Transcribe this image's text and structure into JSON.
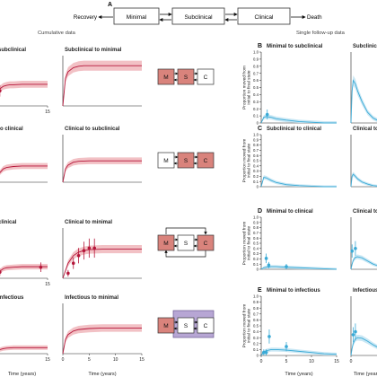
{
  "figure": {
    "panel_letter_A": "A",
    "state_boxes": [
      "Minimal",
      "Subclinical",
      "Clinical"
    ],
    "recovery_label": "Recovery",
    "death_label": "Death",
    "cumulative_header": "Cumulative data",
    "single_header": "Single follow-up data",
    "x_axis_label": "Time (years)",
    "y_axis_label": "Proportion moved from initial to final state",
    "state_initials": [
      "M",
      "S",
      "C"
    ],
    "colors": {
      "red_curve": "#b5163a",
      "red_band": "#f0b6bb",
      "blue_curve": "#3aaad6",
      "blue_band": "#bfe3f2",
      "highlight_box": "#d9837c",
      "purple_box": "#b7a6d4"
    }
  },
  "chart_data": [
    {
      "type": "line",
      "title": "subclinical",
      "x": [
        0,
        1,
        2,
        3,
        4,
        5,
        7.5,
        10,
        12.5,
        15
      ],
      "series": [
        {
          "values": [
            0.0,
            0.34,
            0.39,
            0.41,
            0.42,
            0.42,
            0.43,
            0.43,
            0.43,
            0.43
          ]
        }
      ],
      "points": [
        {
          "x": 1,
          "y": 0.3
        }
      ],
      "xlim": [
        0,
        15
      ],
      "ylim": [
        0,
        1
      ],
      "xticks": [
        "15"
      ]
    },
    {
      "type": "line",
      "title": "Subclinical to minimal",
      "x": [
        0,
        0.5,
        1,
        2,
        3,
        4,
        5,
        7.5,
        10,
        12.5,
        15
      ],
      "series": [
        {
          "values": [
            0.0,
            0.55,
            0.68,
            0.76,
            0.79,
            0.8,
            0.8,
            0.8,
            0.8,
            0.8,
            0.8
          ]
        }
      ],
      "xlim": [
        0,
        15
      ],
      "ylim": [
        0,
        1
      ]
    },
    {
      "type": "line",
      "title": "to clinical",
      "x": [
        0,
        1,
        2,
        3,
        5,
        7.5,
        10,
        12.5,
        15
      ],
      "series": [
        {
          "values": [
            0.0,
            0.2,
            0.28,
            0.31,
            0.33,
            0.34,
            0.34,
            0.34,
            0.34
          ]
        }
      ],
      "xlim": [
        0,
        15
      ],
      "ylim": [
        0,
        1
      ]
    },
    {
      "type": "line",
      "title": "Clinical to subclinical",
      "x": [
        0,
        0.5,
        1,
        2,
        3,
        5,
        7.5,
        10,
        12.5,
        15
      ],
      "series": [
        {
          "values": [
            0.0,
            0.28,
            0.36,
            0.42,
            0.44,
            0.45,
            0.45,
            0.45,
            0.45,
            0.45
          ]
        }
      ],
      "xlim": [
        0,
        15
      ],
      "ylim": [
        0,
        1
      ]
    },
    {
      "type": "line",
      "title": "clinical",
      "x": [
        0,
        1,
        2,
        3,
        5,
        7.5,
        10,
        12.5,
        15
      ],
      "series": [
        {
          "values": [
            0.0,
            0.14,
            0.19,
            0.21,
            0.22,
            0.23,
            0.23,
            0.23,
            0.23
          ]
        }
      ],
      "points": [
        {
          "x": 0.5,
          "y": 0.05
        },
        {
          "x": 1,
          "y": 0.12
        },
        {
          "x": 13,
          "y": 0.22
        }
      ],
      "xlim": [
        0,
        15
      ],
      "ylim": [
        0,
        1
      ],
      "xticks": [
        "15"
      ]
    },
    {
      "type": "line",
      "title": "Clinical to minimal",
      "x": [
        0,
        1,
        2,
        3,
        4,
        5,
        7.5,
        10,
        12.5,
        15
      ],
      "series": [
        {
          "values": [
            0.0,
            0.3,
            0.45,
            0.52,
            0.55,
            0.57,
            0.58,
            0.58,
            0.58,
            0.58
          ]
        }
      ],
      "points": [
        {
          "x": 1,
          "y": 0.1
        },
        {
          "x": 2,
          "y": 0.3
        },
        {
          "x": 3,
          "y": 0.45
        },
        {
          "x": 4,
          "y": 0.55
        },
        {
          "x": 5,
          "y": 0.6
        },
        {
          "x": 6,
          "y": 0.6
        }
      ],
      "xlim": [
        0,
        15
      ],
      "ylim": [
        0,
        1
      ]
    },
    {
      "type": "line",
      "title": "infectious",
      "x": [
        0,
        1,
        2,
        3,
        5,
        7.5,
        10,
        12.5,
        15
      ],
      "series": [
        {
          "values": [
            0.0,
            0.08,
            0.1,
            0.11,
            0.12,
            0.12,
            0.12,
            0.12,
            0.12
          ]
        }
      ],
      "xlim": [
        0,
        15
      ],
      "ylim": [
        0,
        1
      ],
      "xticks": [
        "15"
      ]
    },
    {
      "type": "line",
      "title": "Infectious to minimal",
      "x": [
        0,
        0.5,
        1,
        2,
        3,
        5,
        7.5,
        10,
        12.5,
        15
      ],
      "series": [
        {
          "values": [
            0.0,
            0.28,
            0.38,
            0.45,
            0.48,
            0.5,
            0.51,
            0.51,
            0.51,
            0.51
          ]
        }
      ],
      "xlim": [
        0,
        15
      ],
      "ylim": [
        0,
        1
      ],
      "xticks": [
        "0",
        "5",
        "10",
        "15"
      ]
    },
    {
      "type": "line",
      "letter": "B",
      "title": "Minimal to subclinical",
      "x": [
        0,
        0.5,
        1,
        2,
        3,
        5,
        7.5,
        10,
        12.5,
        15
      ],
      "series": [
        {
          "values": [
            0.0,
            0.08,
            0.09,
            0.08,
            0.06,
            0.04,
            0.02,
            0.01,
            0.0,
            0.0
          ]
        }
      ],
      "points": [
        {
          "x": 1.2,
          "y": 0.12
        }
      ],
      "xlim": [
        0,
        15
      ],
      "ylim": [
        0,
        1
      ],
      "yticks": [
        "0",
        "0.1",
        "0.2",
        "0.3",
        "0.4",
        "0.5",
        "0.6",
        "0.7",
        "0.8",
        "0.9",
        "1.0"
      ]
    },
    {
      "type": "line",
      "title": "Subclinical to minimal",
      "title_visible": "Subclinica",
      "x": [
        0,
        0.5,
        1,
        2,
        3,
        5,
        7.5,
        10,
        12.5,
        15
      ],
      "series": [
        {
          "values": [
            0.0,
            0.45,
            0.6,
            0.55,
            0.45,
            0.3,
            0.15,
            0.07,
            0.03,
            0.02
          ]
        }
      ],
      "xlim": [
        0,
        15
      ],
      "ylim": [
        0,
        1
      ]
    },
    {
      "type": "line",
      "letter": "C",
      "title": "Subclinical to clinical",
      "x": [
        0,
        0.5,
        1,
        2,
        3,
        5,
        7.5,
        10,
        12.5,
        15
      ],
      "series": [
        {
          "values": [
            0.0,
            0.18,
            0.17,
            0.12,
            0.08,
            0.04,
            0.02,
            0.01,
            0.0,
            0.0
          ]
        }
      ],
      "xlim": [
        0,
        15
      ],
      "ylim": [
        0,
        1
      ],
      "yticks": [
        "0",
        "0.1",
        "0.2",
        "0.3",
        "0.4",
        "0.5",
        "0.6",
        "0.7",
        "0.8",
        "0.9",
        "1.0"
      ]
    },
    {
      "type": "line",
      "title": "Clinical to subclinical",
      "title_visible": "Clinical to",
      "x": [
        0,
        0.5,
        1,
        2,
        3,
        5,
        7.5,
        10,
        12.5,
        15
      ],
      "series": [
        {
          "values": [
            0.0,
            0.2,
            0.24,
            0.2,
            0.15,
            0.09,
            0.05,
            0.02,
            0.01,
            0.0
          ]
        }
      ],
      "xlim": [
        0,
        15
      ],
      "ylim": [
        0,
        1
      ]
    },
    {
      "type": "line",
      "letter": "D",
      "title": "Minimal to clinical",
      "x": [
        0,
        0.5,
        1,
        2,
        3,
        5,
        7.5,
        10,
        12.5,
        15
      ],
      "series": [
        {
          "values": [
            0.0,
            0.03,
            0.04,
            0.05,
            0.05,
            0.04,
            0.03,
            0.02,
            0.01,
            0.0
          ]
        }
      ],
      "points": [
        {
          "x": 1,
          "y": 0.21
        },
        {
          "x": 1.5,
          "y": 0.08
        },
        {
          "x": 5,
          "y": 0.05
        }
      ],
      "xlim": [
        0,
        15
      ],
      "ylim": [
        0,
        1
      ],
      "yticks": [
        "0",
        "0.1",
        "0.2",
        "0.3",
        "0.4",
        "0.5",
        "0.6",
        "0.7",
        "0.8",
        "0.9",
        "1.0"
      ]
    },
    {
      "type": "line",
      "title": "Clinical to minimal",
      "title_visible": "Clinical to",
      "x": [
        0,
        0.5,
        1,
        2,
        3,
        5,
        7.5,
        10,
        12.5,
        15
      ],
      "series": [
        {
          "values": [
            0.0,
            0.1,
            0.17,
            0.23,
            0.24,
            0.22,
            0.16,
            0.1,
            0.06,
            0.03
          ]
        }
      ],
      "points": [
        {
          "x": 0.5,
          "y": 0.35
        },
        {
          "x": 2,
          "y": 0.4
        }
      ],
      "xlim": [
        0,
        15
      ],
      "ylim": [
        0,
        1
      ]
    },
    {
      "type": "line",
      "letter": "E",
      "title": "Minimal to infectious",
      "x": [
        0,
        0.5,
        1,
        2,
        3,
        5,
        7.5,
        10,
        12.5,
        15
      ],
      "series": [
        {
          "values": [
            0.0,
            0.06,
            0.08,
            0.1,
            0.1,
            0.09,
            0.07,
            0.05,
            0.03,
            0.02
          ]
        }
      ],
      "points": [
        {
          "x": 0.5,
          "y": 0.05
        },
        {
          "x": 1,
          "y": 0.05
        },
        {
          "x": 1.6,
          "y": 0.32
        },
        {
          "x": 5,
          "y": 0.15
        }
      ],
      "xlim": [
        0,
        15
      ],
      "ylim": [
        0,
        1
      ],
      "xticks": [
        "0",
        "5",
        "10",
        "15"
      ],
      "yticks": [
        "0",
        "0.1",
        "0.2",
        "0.3",
        "0.4",
        "0.5",
        "0.6",
        "0.7",
        "0.8",
        "0.9",
        "1.0"
      ]
    },
    {
      "type": "line",
      "title": "Infectious to minimal",
      "title_visible": "Infectious",
      "x": [
        0,
        0.5,
        1,
        2,
        3,
        5,
        7.5,
        10,
        12.5,
        15
      ],
      "series": [
        {
          "values": [
            0.0,
            0.12,
            0.2,
            0.28,
            0.3,
            0.29,
            0.24,
            0.18,
            0.13,
            0.09
          ]
        }
      ],
      "points": [
        {
          "x": 1,
          "y": 0.35
        },
        {
          "x": 2,
          "y": 0.4
        }
      ],
      "xlim": [
        0,
        15
      ],
      "ylim": [
        0,
        1
      ],
      "xticks": [
        "0"
      ]
    }
  ]
}
